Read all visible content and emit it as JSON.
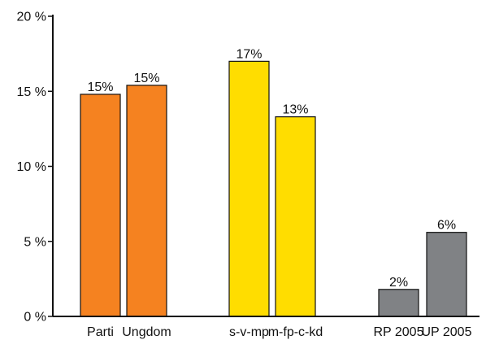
{
  "chart_data": {
    "type": "bar",
    "categories": [
      "Parti",
      "Ungdom",
      "s-v-mp",
      "m-fp-c-kd",
      "RP 2005",
      "UP 2005"
    ],
    "values": [
      14.8,
      15.4,
      17.0,
      13.3,
      1.8,
      5.6
    ],
    "data_labels": [
      "15%",
      "15%",
      "17%",
      "13%",
      "2%",
      "6%"
    ],
    "colors": [
      "#F58220",
      "#F58220",
      "#FFDD00",
      "#FFDD00",
      "#808285",
      "#808285"
    ],
    "groups": [
      [
        0,
        1
      ],
      [
        2,
        3
      ],
      [
        4,
        5
      ]
    ],
    "ylim": [
      0,
      20
    ],
    "yticks": [
      0,
      5,
      10,
      15,
      20
    ],
    "ytick_labels": [
      "0 %",
      "5 %",
      "10 %",
      "15 %",
      "20 %"
    ],
    "title": "",
    "xlabel": "",
    "ylabel": "",
    "grid": false,
    "legend": "none"
  }
}
